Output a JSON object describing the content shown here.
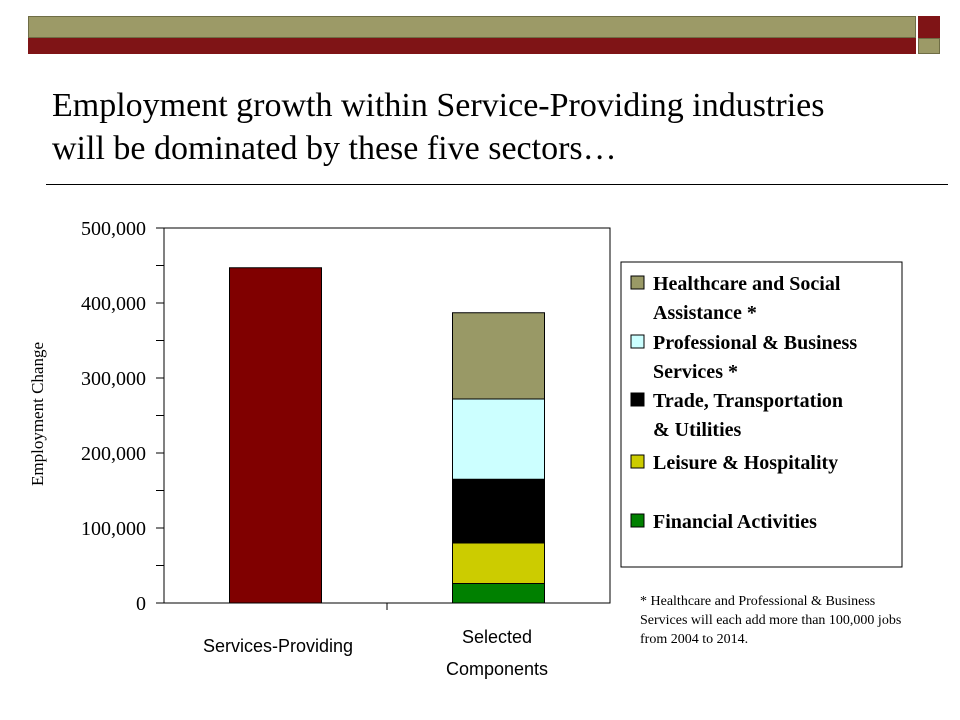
{
  "slide": {
    "title": "Employment growth within Service-Providing industries\nwill be dominated by these five sectors…",
    "footnote": "* Healthcare and Professional & Business Services will each add more than 100,000 jobs from 2004 to 2014.",
    "colors": {
      "top_bar_olive": "#9c9a67",
      "top_bar_red": "#7f1416"
    }
  },
  "chart_data": {
    "type": "bar",
    "stacked": true,
    "ylabel": "Employment Change",
    "xlabel": "",
    "ylim": [
      0,
      500000
    ],
    "y_ticks": [
      {
        "value": 0,
        "label": "0"
      },
      {
        "value": 100000,
        "label": "100,000"
      },
      {
        "value": 200000,
        "label": "200,000"
      },
      {
        "value": 300000,
        "label": "300,000"
      },
      {
        "value": 400000,
        "label": "400,000"
      },
      {
        "value": 500000,
        "label": "500,000"
      }
    ],
    "categories": [
      {
        "label_lines": [
          "Services-Providing"
        ]
      },
      {
        "label_lines": [
          "Selected",
          "Components"
        ]
      }
    ],
    "grid": false,
    "legend_placement": "right",
    "series": [
      {
        "name": "Services-Providing",
        "color": "#800000",
        "values": [
          447000,
          0
        ],
        "in_legend": false
      },
      {
        "name": "Financial Activities",
        "color": "#008000",
        "values": [
          0,
          26000
        ],
        "in_legend": true
      },
      {
        "name": "Leisure & Hospitality",
        "color": "#cccc00",
        "values": [
          0,
          54000
        ],
        "in_legend": true
      },
      {
        "name": "Trade, Transportation & Utilities",
        "color": "#000000",
        "values": [
          0,
          85000
        ],
        "in_legend": true
      },
      {
        "name": "Professional & Business Services *",
        "color": "#ccffff",
        "values": [
          0,
          107000
        ],
        "in_legend": true
      },
      {
        "name": "Healthcare and Social Assistance *",
        "color": "#999966",
        "values": [
          0,
          115000
        ],
        "in_legend": true
      }
    ],
    "legend": [
      {
        "lines": [
          "Healthcare and Social",
          "Assistance *"
        ],
        "color": "#999966"
      },
      {
        "lines": [
          "Professional & Business",
          "Services *"
        ],
        "color": "#ccffff"
      },
      {
        "lines": [
          "Trade, Transportation",
          "& Utilities"
        ],
        "color": "#000000"
      },
      {
        "lines": [
          "Leisure & Hospitality"
        ],
        "color": "#cccc00"
      },
      {
        "lines": [
          "Financial Activities"
        ],
        "color": "#008000"
      }
    ]
  }
}
